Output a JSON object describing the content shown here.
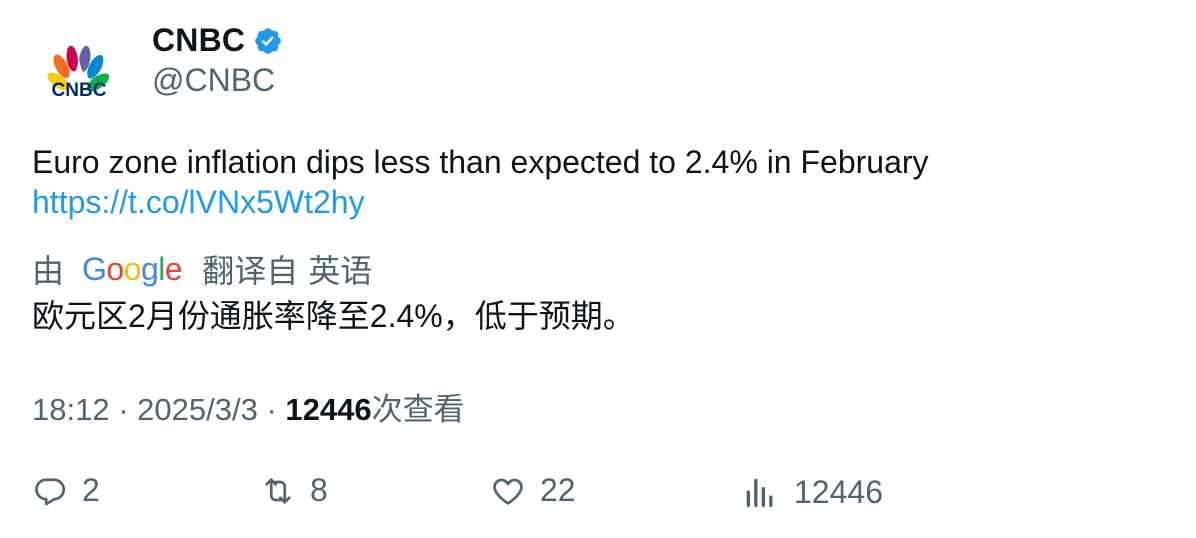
{
  "author": {
    "name": "CNBC",
    "handle": "@CNBC",
    "avatar_logo_text": "CNBC",
    "verified_icon": "verified-badge-icon"
  },
  "tweet": {
    "text": "Euro zone inflation dips less than expected to 2.4% in February",
    "link": "https://t.co/lVNx5Wt2hy"
  },
  "translation": {
    "by_label": "由",
    "provider": "Google",
    "translated_from_label": "翻译自",
    "language": "英语",
    "text": "欧元区2月份通胀率降至2.4%，低于预期。"
  },
  "meta": {
    "time": "18:12",
    "sep1": "·",
    "date": "2025/3/3",
    "sep2": "·",
    "views_count": "12446",
    "views_label": "次查看"
  },
  "actions": {
    "replies": "2",
    "retweets": "8",
    "likes": "22",
    "views": "12446"
  },
  "colors": {
    "link": "#1d9bf0",
    "secondary_text": "#536471",
    "primary_text": "#0f1419",
    "verified": "#1d9bf0"
  }
}
